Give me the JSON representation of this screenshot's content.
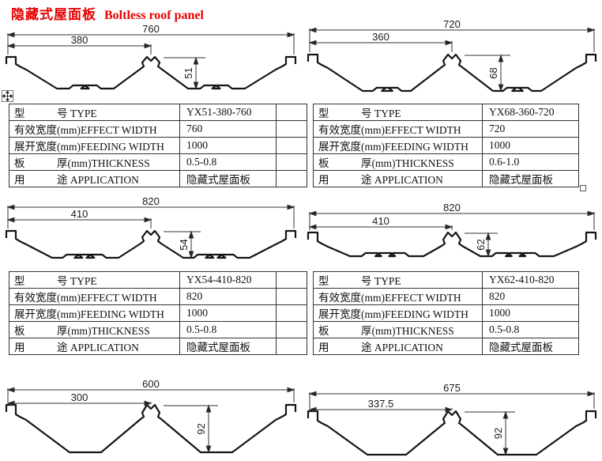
{
  "title": {
    "zh": "隐藏式屋面板",
    "en": "Boltless roof panel"
  },
  "diagrams": [
    {
      "overall": "760",
      "half": "380",
      "height": "51"
    },
    {
      "overall": "720",
      "half": "360",
      "height": "68"
    },
    {
      "overall": "820",
      "half": "410",
      "height": "54"
    },
    {
      "overall": "820",
      "half": "410",
      "height": "62"
    },
    {
      "overall": "600",
      "half": "300",
      "height": "92"
    },
    {
      "overall": "675",
      "half": "337.5",
      "height": "92"
    }
  ],
  "tables": [
    {
      "rows": [
        {
          "label": "型　　　号 TYPE",
          "value": "YX51-380-760"
        },
        {
          "label": "有效宽度(mm)EFFECT WIDTH",
          "value": "760"
        },
        {
          "label": "展开宽度(mm)FEEDING WIDTH",
          "value": "1000"
        },
        {
          "label": "板　　　厚(mm)THICKNESS",
          "value": "0.5-0.8"
        },
        {
          "label": "用　　　途 APPLICATION",
          "value": "隐藏式屋面板"
        }
      ]
    },
    {
      "rows": [
        {
          "label": "型　　　号 TYPE",
          "value": "YX68-360-720"
        },
        {
          "label": "有效宽度(mm)EFFECT WIDTH",
          "value": "720"
        },
        {
          "label": "展开宽度(mm)FEEDING WIDTH",
          "value": "1000"
        },
        {
          "label": "板　　　厚(mm)THICKNESS",
          "value": "0.6-1.0"
        },
        {
          "label": "用　　　途 APPLICATION",
          "value": "隐藏式屋面板"
        }
      ]
    },
    {
      "rows": [
        {
          "label": "型　　　号 TYPE",
          "value": "YX54-410-820"
        },
        {
          "label": "有效宽度(mm)EFFECT WIDTH",
          "value": "820"
        },
        {
          "label": "展开宽度(mm)FEEDING WIDTH",
          "value": "1000"
        },
        {
          "label": "板　　　厚(mm)THICKNESS",
          "value": "0.5-0.8"
        },
        {
          "label": "用　　　途 APPLICATION",
          "value": "隐藏式屋面板"
        }
      ]
    },
    {
      "rows": [
        {
          "label": "型　　　号 TYPE",
          "value": "YX62-410-820"
        },
        {
          "label": "有效宽度(mm)EFFECT WIDTH",
          "value": "820"
        },
        {
          "label": "展开宽度(mm)FEEDING WIDTH",
          "value": "1000"
        },
        {
          "label": "板　　　厚(mm)THICKNESS",
          "value": "0.5-0.8"
        },
        {
          "label": "用　　　途 APPLICATION",
          "value": "隐藏式屋面板"
        }
      ]
    }
  ],
  "icons": {
    "move_handle": "table-move-cross-icon",
    "resize_handle": "table-resize-square-icon"
  }
}
